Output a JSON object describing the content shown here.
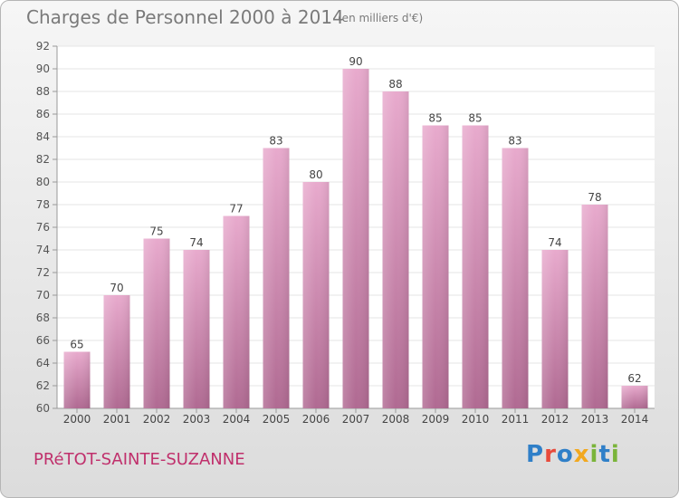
{
  "header": {
    "title": "Charges de Personnel 2000 à 2014",
    "subtitle": "(en milliers d'€)"
  },
  "footer": {
    "commune": "PRéTOT-SAINTE-SUZANNE",
    "logo": {
      "text": "Proxiti",
      "colors": [
        "#2f7fc8",
        "#e84a3b",
        "#2f7fc8",
        "#f2a81f",
        "#7ab43a",
        "#2f7fc8",
        "#7ab43a"
      ]
    }
  },
  "colors": {
    "bar_top": "#e8aacd",
    "bar_bottom": "#b06a92",
    "plot_bg": "#ffffff",
    "grid": "#e6e6e6"
  },
  "chart_data": {
    "type": "bar",
    "categories": [
      "2000",
      "2001",
      "2002",
      "2003",
      "2004",
      "2005",
      "2006",
      "2007",
      "2008",
      "2009",
      "2010",
      "2011",
      "2012",
      "2013",
      "2014"
    ],
    "values": [
      65,
      70,
      75,
      74,
      77,
      83,
      80,
      90,
      88,
      85,
      85,
      83,
      74,
      78,
      62
    ],
    "ylim": [
      60,
      92
    ],
    "yticks": [
      60,
      62,
      64,
      66,
      68,
      70,
      72,
      74,
      76,
      78,
      80,
      82,
      84,
      86,
      88,
      90,
      92
    ],
    "grid": true,
    "data_labels": true
  }
}
